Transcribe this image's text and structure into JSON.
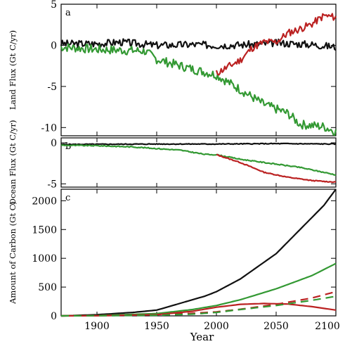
{
  "chart_data": [
    {
      "id": "a",
      "type": "line",
      "panel_label": "a",
      "ylabel": "Land Flux (Gt C/yr)",
      "xlim": [
        1870,
        2100
      ],
      "ylim": [
        -11,
        5
      ],
      "yticks": [
        5,
        0,
        -5,
        -10
      ],
      "series": [
        {
          "color": "#111111",
          "style": "solid",
          "noise": 0.45,
          "seed": 3,
          "points": [
            [
              1870,
              0.2
            ],
            [
              1900,
              0.2
            ],
            [
              1920,
              0.4
            ],
            [
              1950,
              0
            ],
            [
              1980,
              0.1
            ],
            [
              2000,
              0
            ],
            [
              2030,
              0.1
            ],
            [
              2050,
              0.3
            ],
            [
              2080,
              0.1
            ],
            [
              2100,
              -0.2
            ]
          ]
        },
        {
          "color": "#339933",
          "style": "solid",
          "noise": 0.55,
          "seed": 7,
          "points": [
            [
              1870,
              -0.2
            ],
            [
              1900,
              -0.5
            ],
            [
              1940,
              -0.7
            ],
            [
              1950,
              -1.7
            ],
            [
              1980,
              -2.9
            ],
            [
              2000,
              -3.6
            ],
            [
              2020,
              -5.4
            ],
            [
              2040,
              -7.2
            ],
            [
              2060,
              -8.3
            ],
            [
              2070,
              -9.6
            ],
            [
              2090,
              -9.9
            ],
            [
              2100,
              -10.5
            ]
          ]
        },
        {
          "color": "#bb2222",
          "style": "solid",
          "noise": 0.45,
          "seed": 11,
          "points": [
            [
              2000,
              -3.4
            ],
            [
              2010,
              -2.6
            ],
            [
              2020,
              -1.8
            ],
            [
              2030,
              -0.3
            ],
            [
              2040,
              0.4
            ],
            [
              2050,
              0.4
            ],
            [
              2060,
              1.5
            ],
            [
              2070,
              2
            ],
            [
              2080,
              2.6
            ],
            [
              2090,
              3.6
            ],
            [
              2100,
              3.4
            ]
          ]
        }
      ]
    },
    {
      "id": "b",
      "type": "line",
      "panel_label": "b",
      "ylabel": "Ocean Flux (Gt C/yr)",
      "xlim": [
        1870,
        2100
      ],
      "ylim": [
        -5.4,
        0.6
      ],
      "yticks": [
        0,
        -5
      ],
      "series": [
        {
          "color": "#111111",
          "style": "solid",
          "noise": 0.05,
          "seed": 5,
          "points": [
            [
              1870,
              -0.2
            ],
            [
              1950,
              -0.15
            ],
            [
              2000,
              -0.15
            ],
            [
              2050,
              -0.1
            ],
            [
              2100,
              -0.15
            ]
          ]
        },
        {
          "color": "#339933",
          "style": "solid",
          "noise": 0.06,
          "seed": 9,
          "points": [
            [
              1870,
              -0.3
            ],
            [
              1900,
              -0.35
            ],
            [
              1930,
              -0.5
            ],
            [
              1950,
              -0.7
            ],
            [
              1970,
              -0.9
            ],
            [
              1990,
              -1.4
            ],
            [
              2000,
              -1.45
            ],
            [
              2020,
              -2
            ],
            [
              2050,
              -2.6
            ],
            [
              2070,
              -3
            ],
            [
              2100,
              -3.9
            ]
          ]
        },
        {
          "color": "#bb2222",
          "style": "solid",
          "noise": 0.05,
          "seed": 13,
          "points": [
            [
              2000,
              -1.45
            ],
            [
              2020,
              -2.4
            ],
            [
              2040,
              -3.6
            ],
            [
              2060,
              -4.2
            ],
            [
              2080,
              -4.6
            ],
            [
              2100,
              -4.8
            ]
          ]
        }
      ]
    },
    {
      "id": "c",
      "type": "line",
      "panel_label": "c",
      "ylabel": "Amount of Carbon (Gt C)",
      "xlabel": "Year",
      "xlim": [
        1870,
        2100
      ],
      "ylim": [
        0,
        2200
      ],
      "yticks": [
        0,
        500,
        1000,
        1500,
        2000
      ],
      "xticks": [
        1900,
        1950,
        2000,
        2050,
        2100
      ],
      "series": [
        {
          "color": "#111111",
          "style": "solid",
          "points": [
            [
              1870,
              0
            ],
            [
              1900,
              20
            ],
            [
              1930,
              60
            ],
            [
              1950,
              100
            ],
            [
              1970,
              220
            ],
            [
              1990,
              340
            ],
            [
              2000,
              420
            ],
            [
              2020,
              640
            ],
            [
              2050,
              1080
            ],
            [
              2070,
              1500
            ],
            [
              2090,
              1920
            ],
            [
              2100,
              2200
            ]
          ]
        },
        {
          "color": "#339933",
          "style": "solid",
          "points": [
            [
              1870,
              0
            ],
            [
              1900,
              5
            ],
            [
              1950,
              40
            ],
            [
              1980,
              110
            ],
            [
              2000,
              180
            ],
            [
              2020,
              280
            ],
            [
              2050,
              470
            ],
            [
              2080,
              700
            ],
            [
              2100,
              910
            ]
          ]
        },
        {
          "color": "#bb2222",
          "style": "solid",
          "points": [
            [
              1870,
              0
            ],
            [
              1900,
              3
            ],
            [
              1950,
              20
            ],
            [
              1980,
              80
            ],
            [
              2000,
              150
            ],
            [
              2020,
              200
            ],
            [
              2040,
              215
            ],
            [
              2060,
              205
            ],
            [
              2080,
              160
            ],
            [
              2100,
              100
            ]
          ]
        },
        {
          "color": "#bb2222",
          "style": "dashed",
          "points": [
            [
              1870,
              0
            ],
            [
              1950,
              15
            ],
            [
              1980,
              45
            ],
            [
              2000,
              70
            ],
            [
              2020,
              115
            ],
            [
              2050,
              200
            ],
            [
              2080,
              310
            ],
            [
              2100,
              420
            ]
          ]
        },
        {
          "color": "#339933",
          "style": "dashed",
          "points": [
            [
              1870,
              0
            ],
            [
              1950,
              10
            ],
            [
              1980,
              30
            ],
            [
              2000,
              60
            ],
            [
              2020,
              110
            ],
            [
              2050,
              180
            ],
            [
              2080,
              270
            ],
            [
              2100,
              340
            ]
          ]
        }
      ]
    }
  ]
}
